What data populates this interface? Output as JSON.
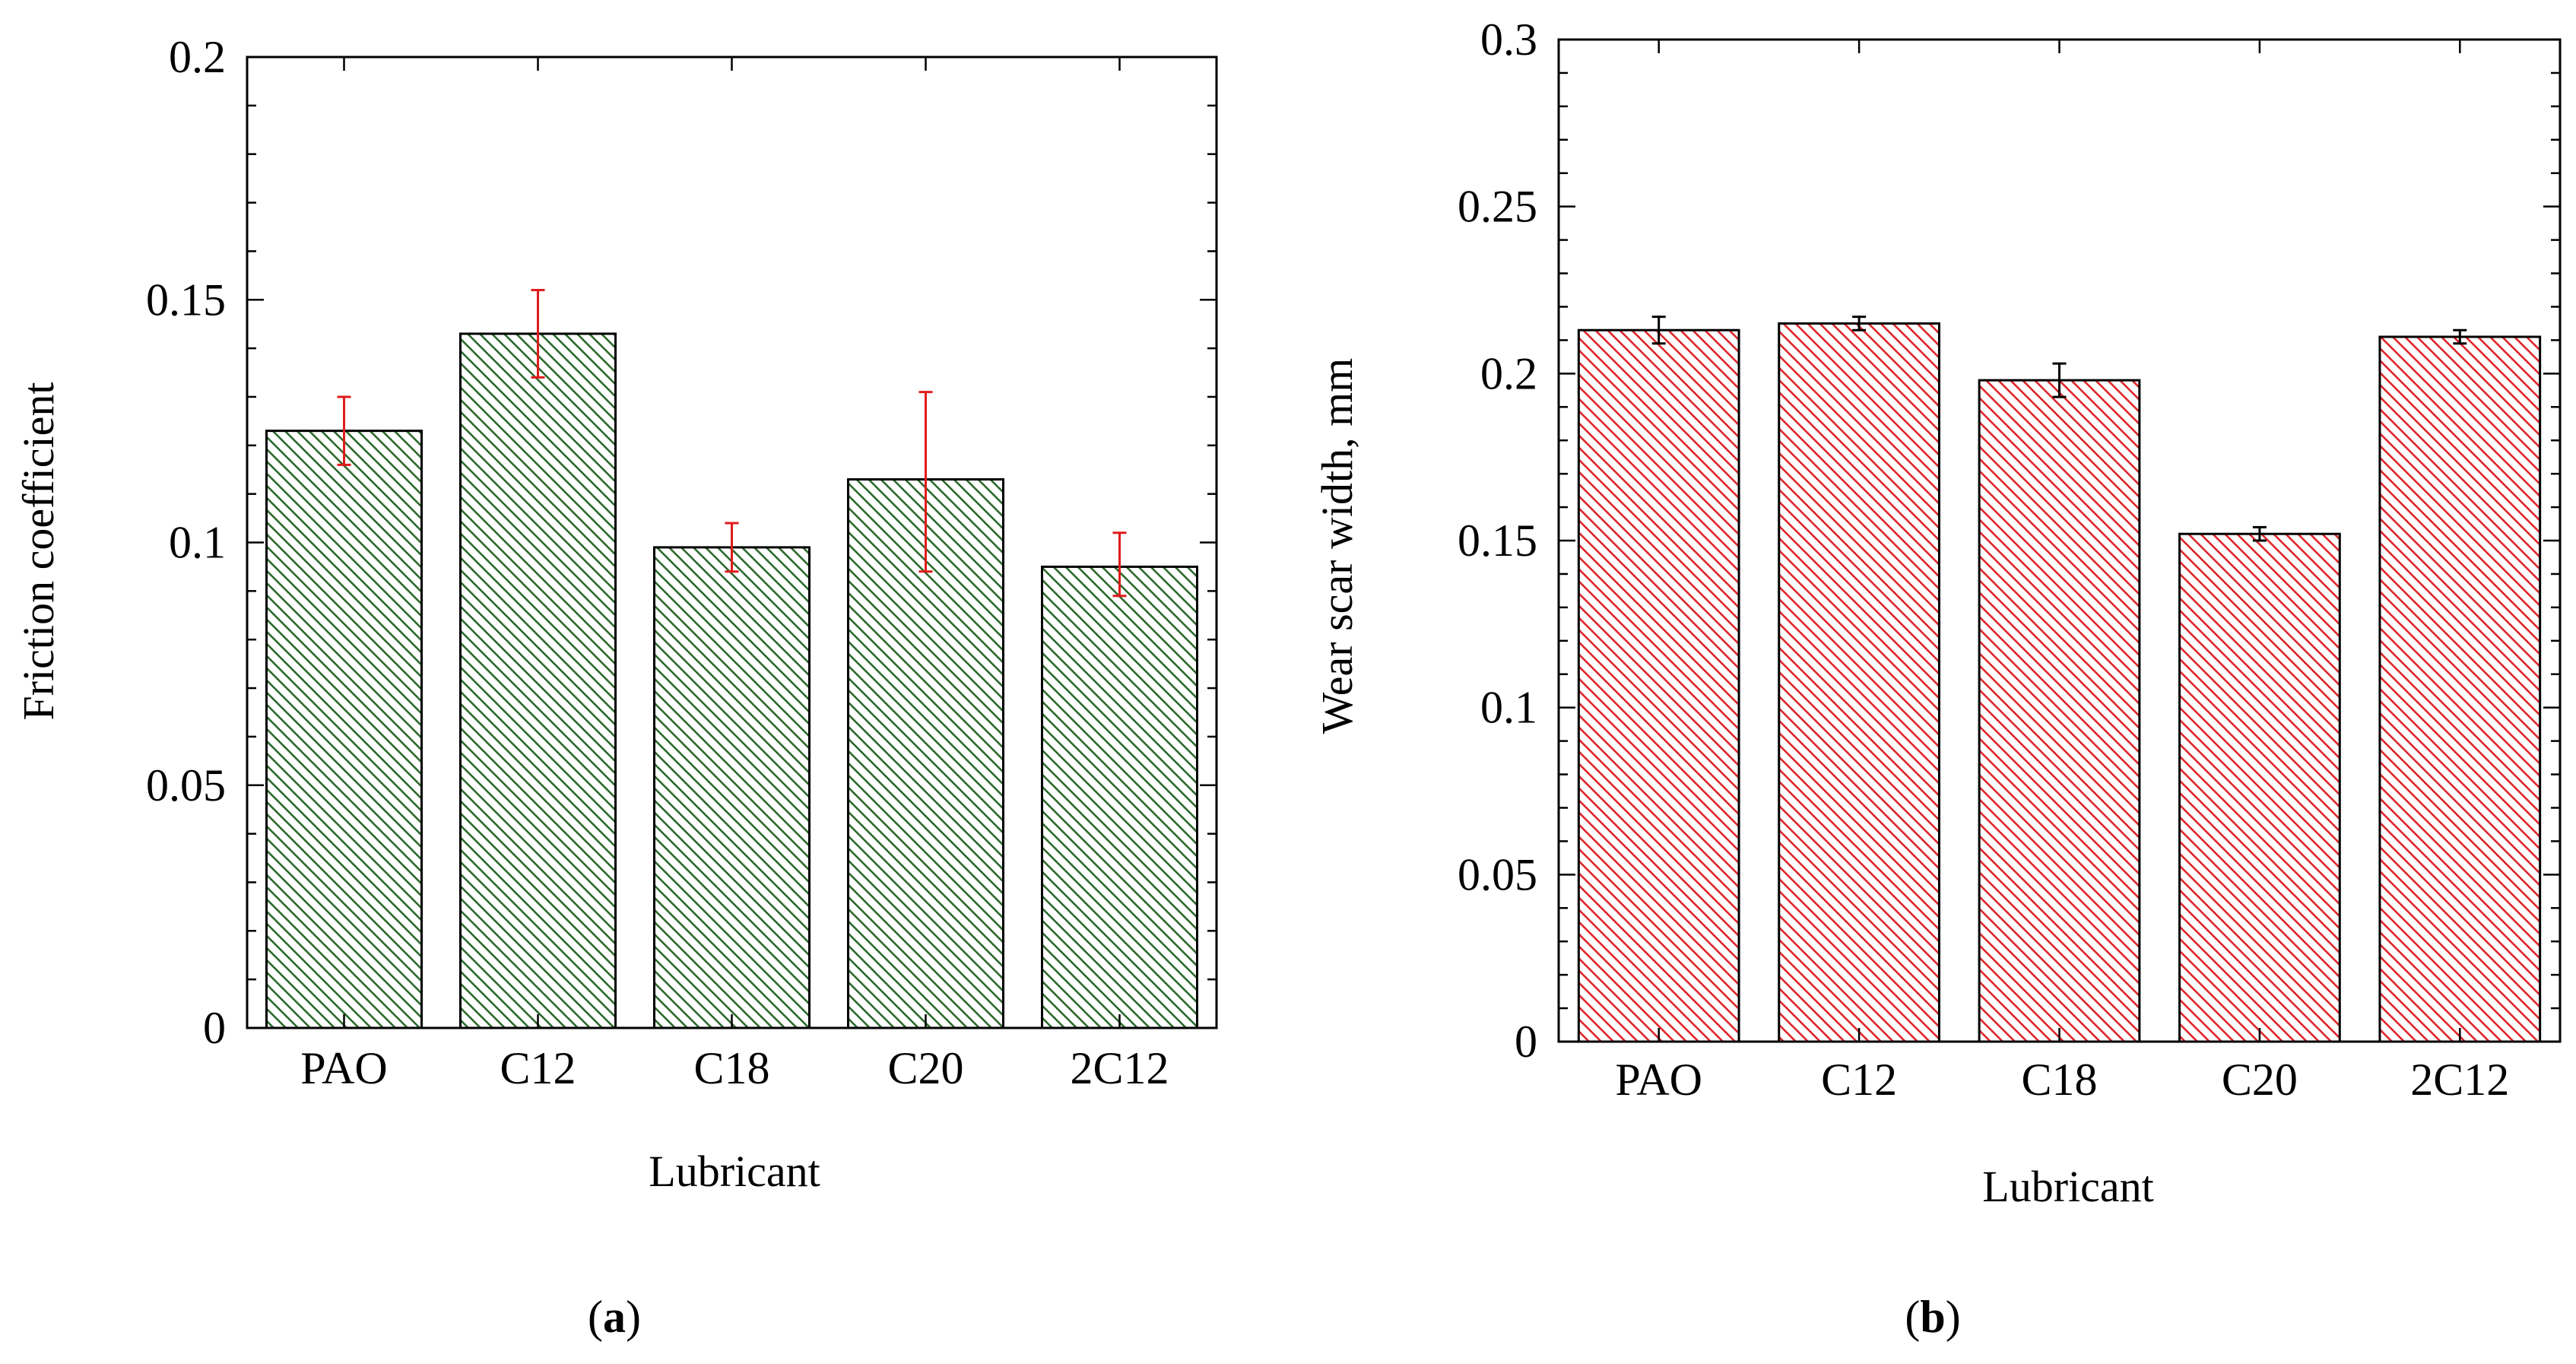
{
  "chart_data": [
    {
      "type": "bar",
      "panel": "a",
      "categories": [
        "PAO",
        "C12",
        "C18",
        "C20",
        "2C12"
      ],
      "values": [
        0.123,
        0.143,
        0.099,
        0.113,
        0.095
      ],
      "error_low": [
        0.116,
        0.134,
        0.094,
        0.094,
        0.089
      ],
      "error_high": [
        0.13,
        0.152,
        0.104,
        0.131,
        0.102
      ],
      "ylim": [
        0,
        0.2
      ],
      "yticks": [
        "0",
        "0.05",
        "0.1",
        "0.15",
        "0.2"
      ],
      "ytick_values": [
        0,
        0.05,
        0.1,
        0.15,
        0.2
      ],
      "xlabel": "Lubricant",
      "ylabel": "Friction coefficient",
      "hatch_color": "#2e6b2e",
      "error_color": "#e01b1b",
      "grid": false
    },
    {
      "type": "bar",
      "panel": "b",
      "categories": [
        "PAO",
        "C12",
        "C18",
        "C20",
        "2C12"
      ],
      "values": [
        0.213,
        0.215,
        0.198,
        0.152,
        0.211
      ],
      "error_low": [
        0.209,
        0.213,
        0.193,
        0.15,
        0.209
      ],
      "error_high": [
        0.217,
        0.217,
        0.203,
        0.154,
        0.213
      ],
      "ylim": [
        0,
        0.3
      ],
      "yticks": [
        "0",
        "0.05",
        "0.1",
        "0.15",
        "0.2",
        "0.25",
        "0.3"
      ],
      "ytick_values": [
        0,
        0.05,
        0.1,
        0.15,
        0.2,
        0.25,
        0.3
      ],
      "xlabel": "Lubricant",
      "ylabel": "Wear scar width, mm",
      "hatch_color": "#e0262b",
      "error_color": "#000000",
      "grid": false
    }
  ],
  "panel_labels": [
    {
      "open": "(",
      "letter": "a",
      "close": ")"
    },
    {
      "open": "(",
      "letter": "b",
      "close": ")"
    }
  ]
}
